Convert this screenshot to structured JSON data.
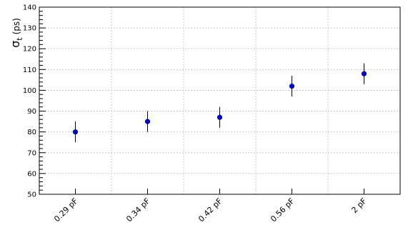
{
  "chart_data": {
    "type": "scatter",
    "categories": [
      "0.29 pF",
      "0.34 pF",
      "0.42 pF",
      "0.56 pF",
      "2 pF"
    ],
    "values": [
      80,
      85,
      87,
      102,
      108
    ],
    "errors": [
      5,
      5,
      5,
      5,
      5
    ],
    "ylabel_main": "σ",
    "ylabel_sub": "t",
    "ylabel_unit": "(ps)",
    "ylim": [
      50,
      140
    ],
    "yticks": [
      50,
      60,
      70,
      80,
      90,
      100,
      110,
      120,
      130,
      140
    ],
    "grid": true,
    "marker_color": "#0000cc"
  }
}
